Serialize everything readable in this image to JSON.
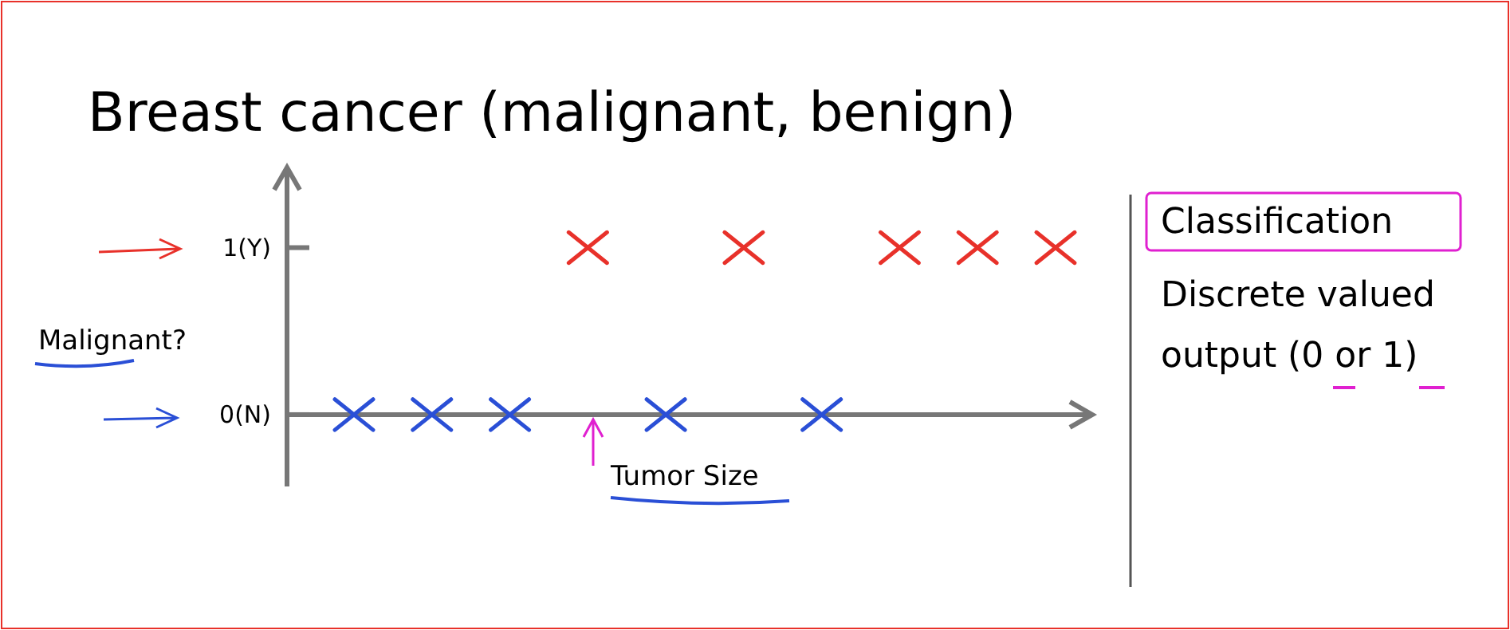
{
  "chart_data": {
    "type": "scatter",
    "title": "Breast cancer (malignant, benign)",
    "xlabel": "Tumor Size",
    "ylabel": "Malignant?",
    "annotations": [
      "Classification",
      "Discrete valued output (0 or 1)"
    ],
    "categories": [
      null,
      null,
      null,
      null,
      null,
      null,
      null,
      null,
      null,
      null
    ],
    "ylim": [
      -0.43,
      1.48
    ],
    "yticks": [
      {
        "value": 0,
        "label": "0(N)"
      },
      {
        "value": 1,
        "label": "1(Y)"
      }
    ],
    "marker": "cross",
    "series": [
      {
        "color": "#e8312a",
        "values": [
          null,
          null,
          null,
          1,
          null,
          1,
          null,
          1,
          1,
          1
        ]
      },
      {
        "color": "#2a4fd6",
        "values": [
          0,
          0,
          0,
          null,
          0,
          null,
          0,
          null,
          null,
          null
        ]
      }
    ]
  }
}
